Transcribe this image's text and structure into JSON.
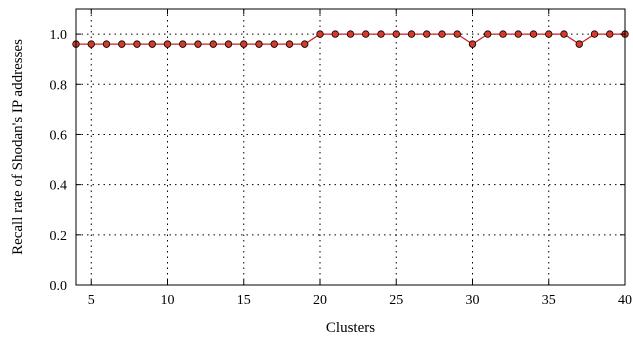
{
  "chart_data": {
    "type": "line",
    "title": "",
    "xlabel": "Clusters",
    "ylabel": "Recall rate of Shodan's IP addresses",
    "xlim": [
      4,
      40
    ],
    "ylim": [
      0,
      1.1
    ],
    "x_ticks": [
      5,
      10,
      15,
      20,
      25,
      30,
      35,
      40
    ],
    "y_ticks": [
      0.0,
      0.2,
      0.4,
      0.6,
      0.8,
      1.0
    ],
    "y_tick_labels": [
      "0.0",
      "0.2",
      "0.4",
      "0.6",
      "0.8",
      "1.0"
    ],
    "grid": true,
    "legend": "none",
    "series": [
      {
        "color": "#cc2222",
        "marker_fill": "#d83a2a",
        "x": [
          4,
          5,
          6,
          7,
          8,
          9,
          10,
          11,
          12,
          13,
          14,
          15,
          16,
          17,
          18,
          19,
          20,
          21,
          22,
          23,
          24,
          25,
          26,
          27,
          28,
          29,
          30,
          31,
          32,
          33,
          34,
          35,
          36,
          37,
          38,
          39,
          40
        ],
        "y": [
          0.96,
          0.96,
          0.96,
          0.96,
          0.96,
          0.96,
          0.96,
          0.96,
          0.96,
          0.96,
          0.96,
          0.96,
          0.96,
          0.96,
          0.96,
          0.96,
          1.0,
          1.0,
          1.0,
          1.0,
          1.0,
          1.0,
          1.0,
          1.0,
          1.0,
          1.0,
          0.96,
          1.0,
          1.0,
          1.0,
          1.0,
          1.0,
          1.0,
          0.96,
          1.0,
          1.0,
          1.0
        ]
      }
    ]
  }
}
